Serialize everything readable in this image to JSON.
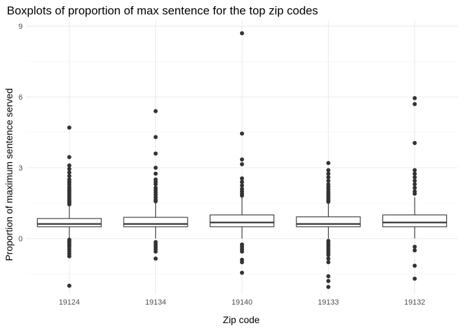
{
  "chart_data": {
    "type": "boxplot",
    "title": "Boxplots of proportion of max sentence for the top zip codes",
    "xlabel": "Zip code",
    "ylabel": "Proportion of maximum sentence served",
    "categories": [
      "19124",
      "19134",
      "19140",
      "19133",
      "19132"
    ],
    "yticks": [
      0,
      3,
      6,
      9
    ],
    "ylim": [
      -2.2,
      9.3
    ],
    "grid": true,
    "boxes": [
      {
        "category": "19124",
        "whisker_low": 0,
        "q1": 0.5,
        "median": 0.62,
        "q3": 0.85,
        "whisker_high": 1.4,
        "outliers": [
          4.7,
          3.45,
          3.1,
          2.95,
          2.8,
          2.65,
          2.5,
          2.4,
          2.3,
          2.2,
          2.12,
          2.05,
          1.98,
          1.9,
          1.82,
          1.75,
          1.68,
          1.6,
          1.55,
          1.5,
          1.45,
          -0.05,
          -0.12,
          -0.2,
          -0.28,
          -0.35,
          -0.45,
          -0.55,
          -0.65,
          -0.75,
          -2.0
        ]
      },
      {
        "category": "19134",
        "whisker_low": 0,
        "q1": 0.5,
        "median": 0.62,
        "q3": 0.9,
        "whisker_high": 1.5,
        "outliers": [
          5.4,
          4.3,
          3.6,
          3.0,
          2.75,
          2.5,
          2.4,
          2.3,
          2.15,
          2.05,
          1.95,
          1.85,
          1.75,
          1.65,
          1.58,
          -0.15,
          -0.25,
          -0.35,
          -0.45,
          -0.55,
          -0.85
        ]
      },
      {
        "category": "19140",
        "whisker_low": 0,
        "q1": 0.5,
        "median": 0.68,
        "q3": 1.0,
        "whisker_high": 1.75,
        "outliers": [
          8.7,
          4.45,
          3.35,
          3.15,
          2.55,
          2.4,
          2.25,
          2.1,
          2.0,
          1.9,
          1.82,
          -0.25,
          -0.35,
          -0.45,
          -0.55,
          -0.9,
          -1.0,
          -1.45
        ]
      },
      {
        "category": "19133",
        "whisker_low": 0,
        "q1": 0.5,
        "median": 0.62,
        "q3": 0.92,
        "whisker_high": 1.5,
        "outliers": [
          3.2,
          2.9,
          2.75,
          2.6,
          2.45,
          2.3,
          2.2,
          2.1,
          2.0,
          1.92,
          1.85,
          1.78,
          1.7,
          1.62,
          1.56,
          -0.1,
          -0.2,
          -0.3,
          -0.4,
          -0.5,
          -0.6,
          -0.7,
          -0.85,
          -1.0,
          -1.6,
          -1.8,
          -2.05
        ]
      },
      {
        "category": "19132",
        "whisker_low": 0,
        "q1": 0.5,
        "median": 0.68,
        "q3": 1.0,
        "whisker_high": 1.75,
        "outliers": [
          5.95,
          5.7,
          4.05,
          2.9,
          2.75,
          2.6,
          2.45,
          2.3,
          2.15,
          2.0,
          1.9,
          -0.35,
          -0.5,
          -1.15,
          -1.7
        ]
      }
    ]
  }
}
